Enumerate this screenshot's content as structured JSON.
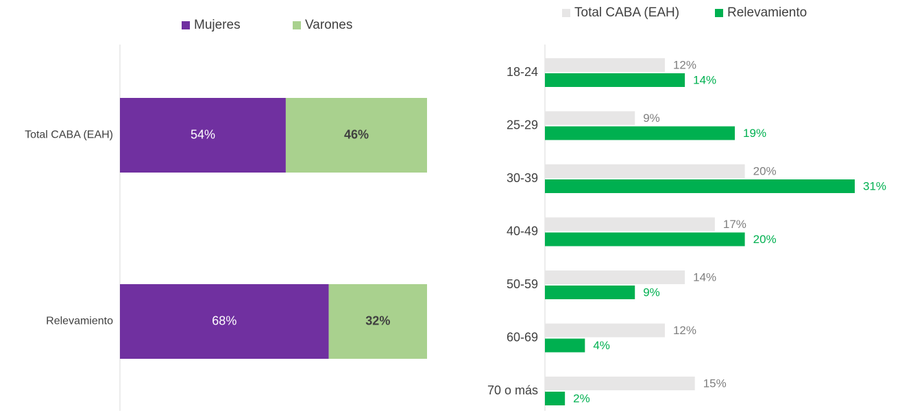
{
  "chart_data": [
    {
      "type": "bar",
      "orientation": "horizontal",
      "stacked": true,
      "legend": "top",
      "categories": [
        "Total CABA (EAH)",
        "Relevamiento"
      ],
      "series": [
        {
          "name": "Mujeres",
          "color": "#7030a0",
          "values": [
            54,
            68
          ],
          "value_labels": [
            "54%",
            "68%"
          ]
        },
        {
          "name": "Varones",
          "color": "#a9d18e",
          "values": [
            46,
            32
          ],
          "value_labels": [
            "46%",
            "32%"
          ]
        }
      ]
    },
    {
      "type": "bar",
      "orientation": "horizontal",
      "stacked": false,
      "legend": "top",
      "categories": [
        "18-24",
        "25-29",
        "30-39",
        "40-49",
        "50-59",
        "60-69",
        "70 o más"
      ],
      "series": [
        {
          "name": "Total CABA (EAH)",
          "color": "#e7e6e6",
          "values": [
            12,
            9,
            20,
            17,
            14,
            12,
            15
          ],
          "value_labels": [
            "12%",
            "9%",
            "20%",
            "17%",
            "14%",
            "12%",
            "15%"
          ]
        },
        {
          "name": "Relevamiento",
          "color": "#00b050",
          "values": [
            14,
            19,
            31,
            20,
            9,
            4,
            2
          ],
          "value_labels": [
            "14%",
            "19%",
            "31%",
            "20%",
            "9%",
            "4%",
            "2%"
          ]
        }
      ]
    }
  ]
}
